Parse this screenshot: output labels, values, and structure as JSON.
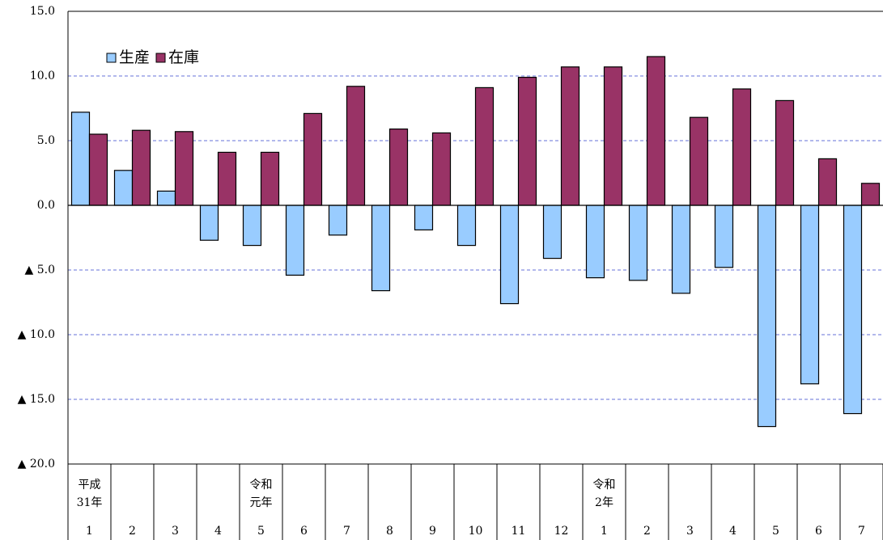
{
  "chart_data": {
    "type": "bar",
    "categories": [
      "1",
      "2",
      "3",
      "4",
      "5",
      "6",
      "7",
      "8",
      "9",
      "10",
      "11",
      "12",
      "1",
      "2",
      "3",
      "4",
      "5",
      "6",
      "7"
    ],
    "era_labels": [
      [
        "平成",
        "31年"
      ],
      null,
      null,
      null,
      [
        "令和",
        "元年"
      ],
      null,
      null,
      null,
      null,
      null,
      null,
      null,
      [
        "令和",
        "2年"
      ],
      null,
      null,
      null,
      null,
      null,
      null
    ],
    "series": [
      {
        "name": "生産",
        "color": "#99ccff",
        "values": [
          7.2,
          2.7,
          1.1,
          -2.7,
          -3.1,
          -5.4,
          -2.3,
          -6.6,
          -1.9,
          -3.1,
          -7.6,
          -4.1,
          -5.6,
          -5.8,
          -6.8,
          -4.8,
          -17.1,
          -13.8,
          -16.1
        ]
      },
      {
        "name": "在庫",
        "color": "#993366",
        "values": [
          5.5,
          5.8,
          5.7,
          4.1,
          4.1,
          7.1,
          9.2,
          5.9,
          5.6,
          9.1,
          9.9,
          10.7,
          10.7,
          11.5,
          6.8,
          9.0,
          8.1,
          3.6,
          1.7
        ]
      }
    ],
    "ylim": [
      -20,
      15
    ],
    "yticks": [
      {
        "value": 15,
        "label": "15.0"
      },
      {
        "value": 10,
        "label": "10.0"
      },
      {
        "value": 5,
        "label": "5.0"
      },
      {
        "value": 0,
        "label": "0.0"
      },
      {
        "value": -5,
        "label": "▲ 5.0"
      },
      {
        "value": -10,
        "label": "▲ 10.0"
      },
      {
        "value": -15,
        "label": "▲ 15.0"
      },
      {
        "value": -20,
        "label": "▲ 20.0"
      }
    ],
    "grid": true,
    "legend": "upper left"
  }
}
